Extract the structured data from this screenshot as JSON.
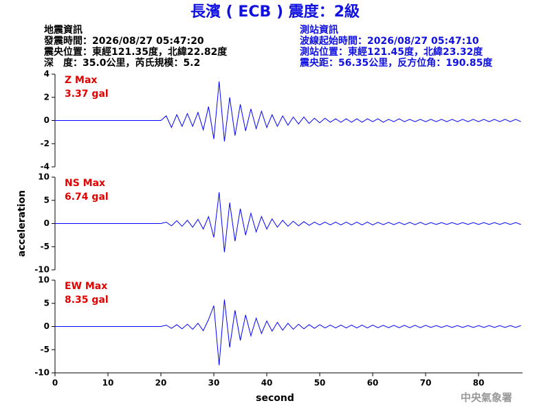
{
  "header": {
    "title": "長濱 ( ECB ) 震度：2級",
    "left": [
      "地震資訊",
      "發震時間：2026/08/27 05:47:20",
      "震央位置：東經121.35度，北緯22.82度",
      "深　度：35.0公里，芮氏規模：5.2"
    ],
    "right": [
      "測站資訊",
      "波線起始時間：2026/08/27 05:47:10",
      "測站位置：東經121.45度，北緯23.32度",
      "震央距：56.35公里，反方位角：190.85度"
    ]
  },
  "footer": "中央氣象署",
  "chart_data": [
    {
      "type": "line",
      "label": "Z Max",
      "max_label": "3.37 gal",
      "color": "#0000ff",
      "x": [
        0,
        1,
        2,
        3,
        4,
        5,
        6,
        7,
        8,
        9,
        10,
        11,
        12,
        13,
        14,
        15,
        16,
        17,
        18,
        19,
        20,
        21,
        22,
        23,
        24,
        25,
        26,
        27,
        28,
        29,
        30,
        31,
        32,
        33,
        34,
        35,
        36,
        37,
        38,
        39,
        40,
        41,
        42,
        43,
        44,
        45,
        46,
        47,
        48,
        49,
        50,
        51,
        52,
        53,
        54,
        55,
        56,
        57,
        58,
        59,
        60,
        61,
        62,
        63,
        64,
        65,
        66,
        67,
        68,
        69,
        70,
        71,
        72,
        73,
        74,
        75,
        76,
        77,
        78,
        79,
        80,
        81,
        82,
        83,
        84,
        85,
        86,
        87,
        88
      ],
      "values": [
        0,
        0,
        0,
        0,
        0,
        0,
        0,
        0,
        0,
        0,
        0,
        0,
        0,
        0,
        0,
        0,
        0,
        0,
        0,
        0,
        0,
        0.4,
        -0.6,
        0.5,
        -0.5,
        0.6,
        -0.5,
        0.7,
        -0.8,
        1.2,
        -1.6,
        3.37,
        -1.8,
        2.0,
        -1.3,
        1.4,
        -0.9,
        1.0,
        -0.7,
        0.8,
        -0.6,
        0.5,
        -0.5,
        0.4,
        -0.4,
        0.3,
        -0.3,
        0.3,
        -0.25,
        0.2,
        -0.2,
        0.2,
        -0.15,
        0.15,
        -0.15,
        0.15,
        -0.15,
        0.15,
        -0.15,
        0.15,
        -0.1,
        0.15,
        -0.15,
        0.1,
        -0.1,
        0.15,
        -0.1,
        0.1,
        -0.1,
        0.1,
        -0.1,
        0.1,
        -0.1,
        0.1,
        -0.1,
        0.1,
        -0.1,
        0.1,
        -0.1,
        0.1,
        -0.1,
        0.1,
        -0.1,
        0.1,
        -0.1,
        0.1,
        -0.1,
        0.1,
        -0.1
      ],
      "xlim": [
        0,
        88.3
      ],
      "ylim": [
        -4,
        4
      ],
      "yticks": [
        -4,
        -2,
        0,
        2,
        4
      ]
    },
    {
      "type": "line",
      "label": "NS Max",
      "max_label": "6.74 gal",
      "color": "#0000ff",
      "ylabel": "acceleration",
      "x": [
        0,
        1,
        2,
        3,
        4,
        5,
        6,
        7,
        8,
        9,
        10,
        11,
        12,
        13,
        14,
        15,
        16,
        17,
        18,
        19,
        20,
        21,
        22,
        23,
        24,
        25,
        26,
        27,
        28,
        29,
        30,
        31,
        32,
        33,
        34,
        35,
        36,
        37,
        38,
        39,
        40,
        41,
        42,
        43,
        44,
        45,
        46,
        47,
        48,
        49,
        50,
        51,
        52,
        53,
        54,
        55,
        56,
        57,
        58,
        59,
        60,
        61,
        62,
        63,
        64,
        65,
        66,
        67,
        68,
        69,
        70,
        71,
        72,
        73,
        74,
        75,
        76,
        77,
        78,
        79,
        80,
        81,
        82,
        83,
        84,
        85,
        86,
        87,
        88
      ],
      "values": [
        0,
        0,
        0,
        0,
        0,
        0,
        0,
        0,
        0,
        0,
        0,
        0,
        0,
        0,
        0,
        0,
        0,
        0,
        0,
        0,
        0,
        0.3,
        -0.5,
        0.6,
        -0.6,
        0.7,
        -0.8,
        0.9,
        -1.2,
        1.5,
        -3,
        6.74,
        -6.2,
        4.5,
        -3.8,
        3.2,
        -2.5,
        2.2,
        -1.8,
        1.5,
        -1.2,
        1.0,
        -0.8,
        0.7,
        -0.6,
        0.5,
        -0.5,
        0.4,
        -0.4,
        0.3,
        -0.3,
        0.3,
        -0.3,
        0.3,
        -0.3,
        0.3,
        -0.3,
        0.3,
        -0.3,
        0.3,
        -0.3,
        0.25,
        -0.25,
        0.25,
        -0.25,
        0.25,
        -0.25,
        0.25,
        -0.25,
        0.25,
        -0.25,
        0.2,
        -0.2,
        0.2,
        -0.2,
        0.2,
        -0.2,
        0.2,
        -0.2,
        0.2,
        -0.2,
        0.2,
        -0.2,
        0.2,
        -0.2,
        0.2,
        -0.2,
        0.2,
        -0.2
      ],
      "xlim": [
        0,
        88.3
      ],
      "ylim": [
        -10,
        10
      ],
      "yticks": [
        -10,
        -5,
        0,
        5,
        10
      ]
    },
    {
      "type": "line",
      "label": "EW Max",
      "max_label": "8.35 gal",
      "color": "#0000ff",
      "xlabel": "second",
      "x": [
        0,
        1,
        2,
        3,
        4,
        5,
        6,
        7,
        8,
        9,
        10,
        11,
        12,
        13,
        14,
        15,
        16,
        17,
        18,
        19,
        20,
        21,
        22,
        23,
        24,
        25,
        26,
        27,
        28,
        29,
        30,
        31,
        32,
        33,
        34,
        35,
        36,
        37,
        38,
        39,
        40,
        41,
        42,
        43,
        44,
        45,
        46,
        47,
        48,
        49,
        50,
        51,
        52,
        53,
        54,
        55,
        56,
        57,
        58,
        59,
        60,
        61,
        62,
        63,
        64,
        65,
        66,
        67,
        68,
        69,
        70,
        71,
        72,
        73,
        74,
        75,
        76,
        77,
        78,
        79,
        80,
        81,
        82,
        83,
        84,
        85,
        86,
        87,
        88
      ],
      "values": [
        0,
        0,
        0,
        0,
        0,
        0,
        0,
        0,
        0,
        0,
        0,
        0,
        0,
        0,
        0,
        0,
        0,
        0,
        0,
        0,
        0,
        0.3,
        -0.4,
        0.4,
        -0.5,
        0.5,
        -0.6,
        0.7,
        -0.9,
        1.5,
        4.5,
        -8.35,
        5.8,
        -4.5,
        3.5,
        -3,
        2.5,
        -2,
        1.8,
        -1.5,
        1.2,
        -1,
        0.9,
        -0.8,
        0.7,
        -0.6,
        0.5,
        -0.5,
        0.4,
        -0.4,
        0.4,
        -0.3,
        0.3,
        -0.3,
        0.3,
        -0.3,
        0.3,
        -0.3,
        0.3,
        -0.3,
        0.3,
        -0.25,
        0.25,
        -0.25,
        0.25,
        -0.25,
        0.25,
        -0.25,
        0.25,
        -0.25,
        0.25,
        -0.2,
        0.2,
        -0.2,
        0.2,
        -0.2,
        0.2,
        -0.2,
        0.2,
        -0.2,
        0.2,
        -0.2,
        0.2,
        -0.2,
        0.2,
        -0.2,
        0.2,
        -0.2,
        0.2
      ],
      "xlim": [
        0,
        88.3
      ],
      "ylim": [
        -10,
        10
      ],
      "yticks": [
        -10,
        -5,
        0,
        5,
        10
      ],
      "xticks": [
        0,
        10,
        20,
        30,
        40,
        50,
        60,
        70,
        80
      ]
    }
  ]
}
